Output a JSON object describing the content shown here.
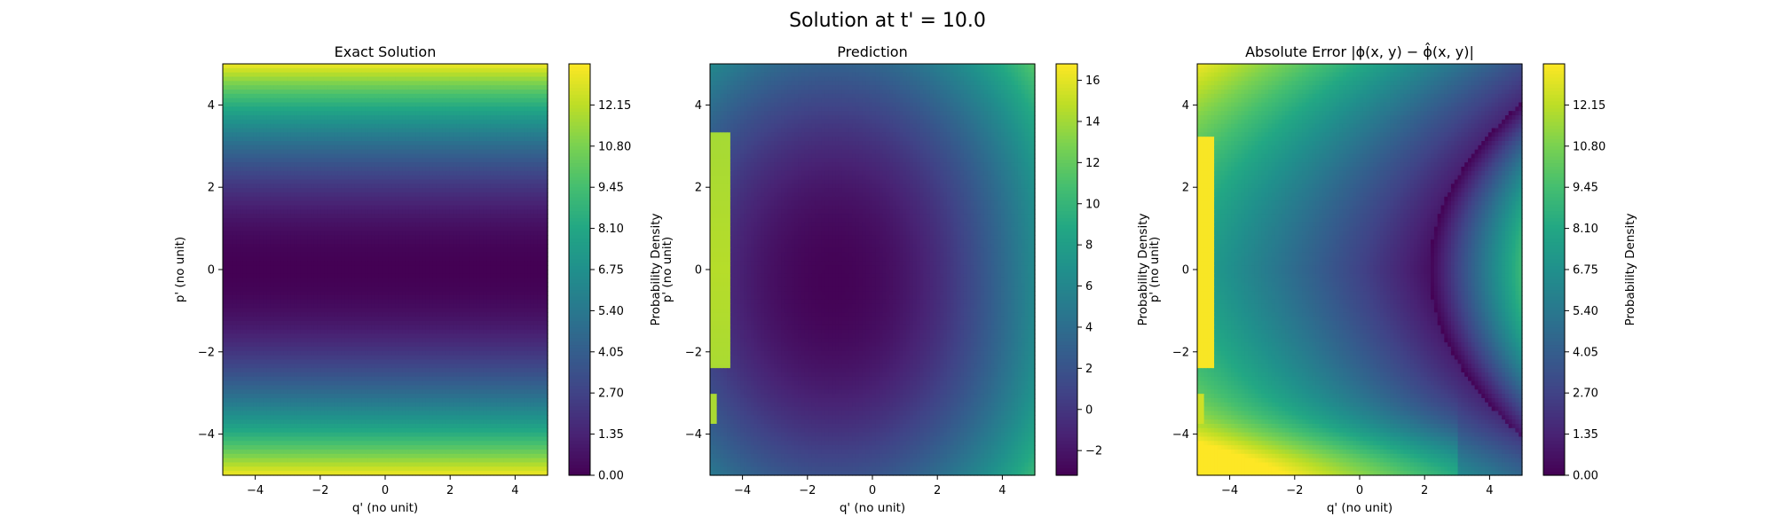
{
  "figure": {
    "suptitle": "Solution at t' = 10.0"
  },
  "chart_data": [
    {
      "type": "heatmap",
      "title": "Exact Solution",
      "xlabel": "q' (no unit)",
      "ylabel": "p' (no unit)",
      "xlim": [
        -5,
        5
      ],
      "ylim": [
        -5,
        5
      ],
      "xticks": [
        "−4",
        "−2",
        "0",
        "2",
        "4"
      ],
      "xtick_values": [
        -4,
        -2,
        0,
        2,
        4
      ],
      "yticks": [
        "−4",
        "−2",
        "0",
        "2",
        "4"
      ],
      "ytick_values": [
        -4,
        -2,
        0,
        2,
        4
      ],
      "colormap": "viridis",
      "colorbar": {
        "label": "Probability Density",
        "range": [
          0,
          13.5
        ],
        "ticks": [
          "0.00",
          "1.35",
          "2.70",
          "4.05",
          "5.40",
          "6.75",
          "8.10",
          "9.45",
          "10.80",
          "12.15"
        ],
        "tick_values": [
          0,
          1.35,
          2.7,
          4.05,
          5.4,
          6.75,
          8.1,
          9.45,
          10.8,
          12.15
        ]
      },
      "field": "exact"
    },
    {
      "type": "heatmap",
      "title": "Prediction",
      "xlabel": "q' (no unit)",
      "ylabel": "p' (no unit)",
      "xlim": [
        -5,
        5
      ],
      "ylim": [
        -5,
        5
      ],
      "xticks": [
        "−4",
        "−2",
        "0",
        "2",
        "4"
      ],
      "xtick_values": [
        -4,
        -2,
        0,
        2,
        4
      ],
      "yticks": [
        "−4",
        "−2",
        "0",
        "2",
        "4"
      ],
      "ytick_values": [
        -4,
        -2,
        0,
        2,
        4
      ],
      "colormap": "viridis",
      "colorbar": {
        "label": "Probability Density",
        "range": [
          -3.2,
          16.8
        ],
        "ticks": [
          "−2",
          "0",
          "2",
          "4",
          "6",
          "8",
          "10",
          "12",
          "14",
          "16"
        ],
        "tick_values": [
          -2,
          0,
          2,
          4,
          6,
          8,
          10,
          12,
          14,
          16
        ]
      },
      "field": "prediction"
    },
    {
      "type": "heatmap",
      "title": "Absolute Error |ϕ(x, y) − ϕ̂(x, y)|",
      "xlabel": "q' (no unit)",
      "ylabel": "p' (no unit)",
      "xlim": [
        -5,
        5
      ],
      "ylim": [
        -5,
        5
      ],
      "xticks": [
        "−4",
        "−2",
        "0",
        "2",
        "4"
      ],
      "xtick_values": [
        -4,
        -2,
        0,
        2,
        4
      ],
      "yticks": [
        "−4",
        "−2",
        "0",
        "2",
        "4"
      ],
      "ytick_values": [
        -4,
        -2,
        0,
        2,
        4
      ],
      "colormap": "viridis",
      "colorbar": {
        "label": "Probability Density",
        "range": [
          0,
          13.5
        ],
        "ticks": [
          "0.00",
          "1.35",
          "2.70",
          "4.05",
          "5.40",
          "6.75",
          "8.10",
          "9.45",
          "10.80",
          "12.15"
        ],
        "tick_values": [
          0,
          1.35,
          2.7,
          4.05,
          5.4,
          6.75,
          8.1,
          9.45,
          10.8,
          12.15
        ]
      },
      "field": "error"
    }
  ]
}
